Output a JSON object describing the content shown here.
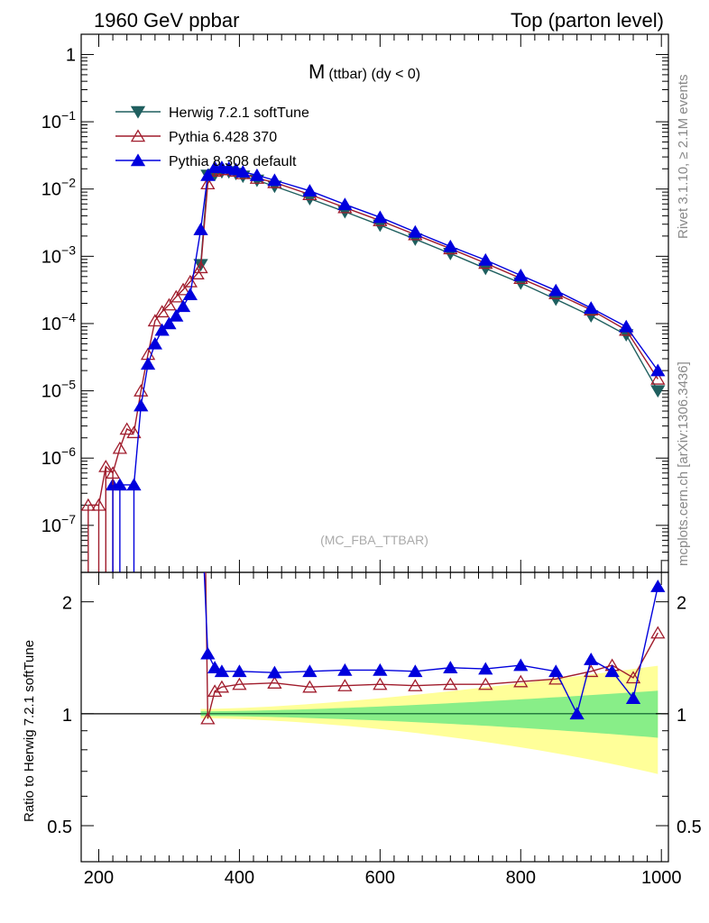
{
  "header": {
    "left": "1960 GeV ppbar",
    "right": "Top (parton level)"
  },
  "side_labels": {
    "rivet": "Rivet 3.1.10, ≥ 2.1M events",
    "mcplots": "mcplots.cern.ch [arXiv:1306.3436]"
  },
  "colors": {
    "herwig": "#1f5f5f",
    "pythia6": "#a01c2c",
    "pythia8": "#0000dd",
    "band_yellow": "#ffff99",
    "band_green": "#88ee88"
  },
  "chart_data": [
    {
      "type": "scatter",
      "title": "M (ttbar) (dy < 0)",
      "title_main": "M",
      "title_sub": "(ttbar) (dy < 0)",
      "analysis_tag": "(MC_FBA_TTBAR)",
      "xlim": [
        175,
        1010
      ],
      "ylim": [
        2e-08,
        2
      ],
      "yscale": "log",
      "y_ticks": [
        {
          "value": 1,
          "label": "1"
        },
        {
          "value": 0.1,
          "base": "10",
          "exp": "−1"
        },
        {
          "value": 0.01,
          "base": "10",
          "exp": "−2"
        },
        {
          "value": 0.001,
          "base": "10",
          "exp": "−3"
        },
        {
          "value": 0.0001,
          "base": "10",
          "exp": "−4"
        },
        {
          "value": 1e-05,
          "base": "10",
          "exp": "−5"
        },
        {
          "value": 1e-06,
          "base": "10",
          "exp": "−6"
        },
        {
          "value": 1e-07,
          "base": "10",
          "exp": "−7"
        }
      ],
      "legend_position": "top-left",
      "series": [
        {
          "name": "Herwig 7.2.1 softTune",
          "key": "herwig",
          "marker": "triangle-down-filled",
          "x": [
            345,
            355,
            365,
            375,
            385,
            395,
            405,
            425,
            450,
            500,
            550,
            600,
            650,
            700,
            750,
            800,
            850,
            900,
            950,
            995
          ],
          "values": [
            0.00075,
            0.016,
            0.0165,
            0.018,
            0.018,
            0.017,
            0.0155,
            0.0135,
            0.011,
            0.0072,
            0.0046,
            0.0029,
            0.0018,
            0.0011,
            0.00066,
            0.0004,
            0.00023,
            0.00013,
            6.8e-05,
            1e-05
          ]
        },
        {
          "name": "Pythia 6.428 370",
          "key": "pythia6",
          "marker": "triangle-up-open",
          "x": [
            185,
            200,
            210,
            220,
            230,
            240,
            250,
            260,
            270,
            280,
            290,
            300,
            310,
            320,
            330,
            340,
            345,
            355,
            365,
            375,
            385,
            395,
            405,
            425,
            450,
            500,
            550,
            600,
            650,
            700,
            750,
            800,
            850,
            900,
            950,
            995
          ],
          "values": [
            2e-07,
            2e-07,
            7.5e-07,
            6e-07,
            1.4e-06,
            2.7e-06,
            2.4e-06,
            1e-05,
            3.5e-05,
            0.00011,
            0.00015,
            0.00019,
            0.00025,
            0.00032,
            0.00042,
            0.00055,
            0.00068,
            0.012,
            0.0185,
            0.0195,
            0.0195,
            0.0185,
            0.017,
            0.0145,
            0.0125,
            0.0083,
            0.0053,
            0.0034,
            0.0021,
            0.0013,
            0.00079,
            0.00047,
            0.00028,
            0.00016,
            8e-05,
            1.5e-05
          ]
        },
        {
          "name": "Pythia 8.308 default",
          "key": "pythia8",
          "marker": "triangle-up-filled",
          "x": [
            220,
            230,
            250,
            260,
            270,
            280,
            290,
            300,
            310,
            320,
            330,
            345,
            355,
            365,
            375,
            385,
            395,
            405,
            425,
            450,
            500,
            550,
            600,
            650,
            700,
            750,
            800,
            850,
            900,
            950,
            995
          ],
          "values": [
            4e-07,
            4e-07,
            4e-07,
            6e-06,
            2.5e-05,
            5e-05,
            8e-05,
            0.0001,
            0.00013,
            0.00018,
            0.00027,
            0.0025,
            0.016,
            0.021,
            0.021,
            0.0205,
            0.0195,
            0.018,
            0.016,
            0.0135,
            0.0094,
            0.0059,
            0.0038,
            0.0023,
            0.0014,
            0.00088,
            0.00052,
            0.00031,
            0.00017,
            9e-05,
            2e-05
          ]
        }
      ]
    },
    {
      "type": "scatter",
      "ylabel": "Ratio to Herwig 7.2.1 softTune",
      "xlim": [
        175,
        1010
      ],
      "ylim": [
        0.4,
        2.4
      ],
      "yscale": "log",
      "x_ticks": [
        "200",
        "400",
        "600",
        "800",
        "1000"
      ],
      "y_ticks": [
        "0.5",
        "1",
        "2"
      ],
      "reference_line": 1,
      "series": [
        {
          "key": "pythia6",
          "marker": "triangle-up-open",
          "x": [
            352,
            355,
            365,
            375,
            400,
            450,
            500,
            550,
            600,
            650,
            700,
            750,
            800,
            850,
            900,
            930,
            960,
            995
          ],
          "values": [
            2.5,
            0.97,
            1.15,
            1.18,
            1.2,
            1.21,
            1.18,
            1.19,
            1.2,
            1.19,
            1.2,
            1.2,
            1.22,
            1.24,
            1.3,
            1.35,
            1.25,
            1.65
          ]
        },
        {
          "key": "pythia8",
          "marker": "triangle-up-filled",
          "x": [
            350,
            355,
            365,
            375,
            400,
            450,
            500,
            550,
            600,
            650,
            700,
            750,
            800,
            850,
            880,
            900,
            930,
            960,
            995
          ],
          "values": [
            2.5,
            1.45,
            1.33,
            1.3,
            1.3,
            1.29,
            1.3,
            1.31,
            1.31,
            1.3,
            1.33,
            1.32,
            1.35,
            1.3,
            1.0,
            1.4,
            1.3,
            1.1,
            2.2
          ]
        }
      ]
    }
  ]
}
